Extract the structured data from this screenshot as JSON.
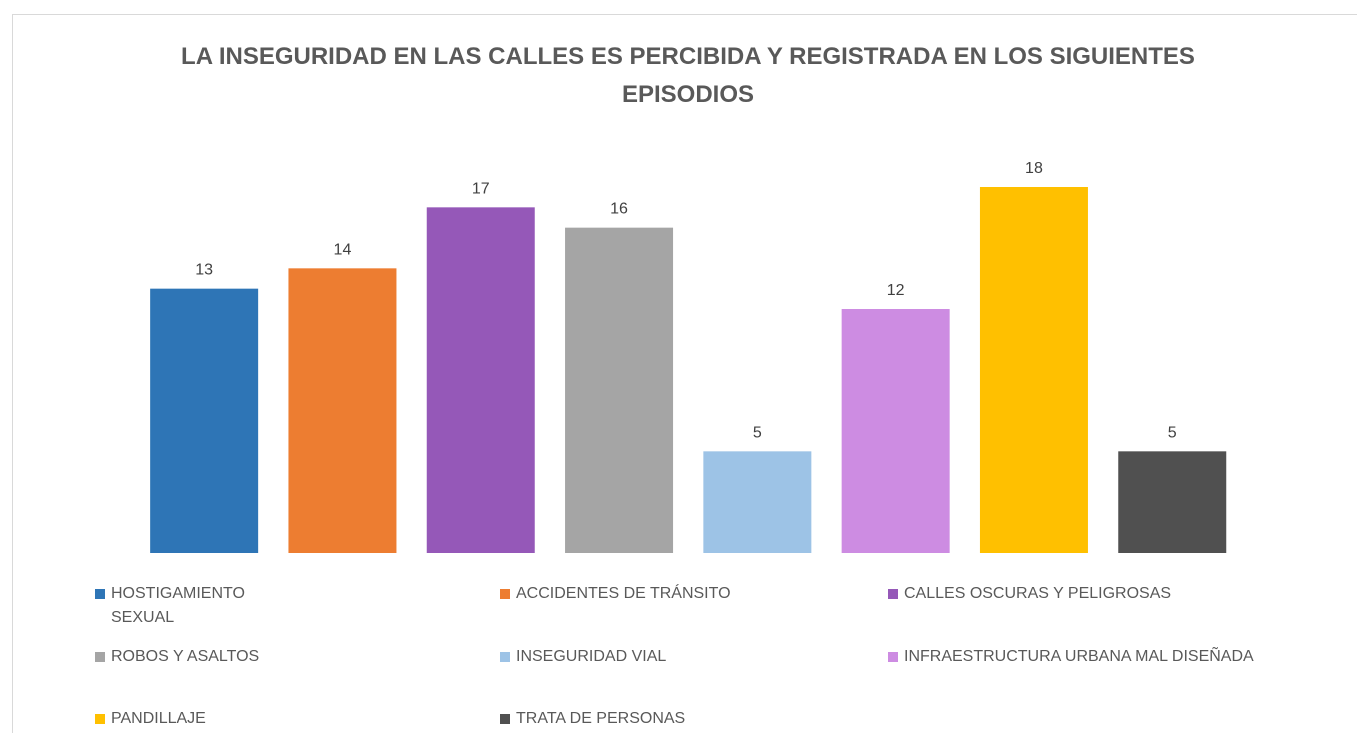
{
  "chart_data": {
    "type": "bar",
    "title": "LA INSEGURIDAD EN LAS CALLES ES PERCIBIDA Y REGISTRADA EN LOS SIGUIENTES EPISODIOS",
    "categories": [
      "HOSTIGAMIENTO SEXUAL",
      "ACCIDENTES DE TRÁNSITO",
      "CALLES OSCURAS Y PELIGROSAS",
      "ROBOS Y ASALTOS",
      "INSEGURIDAD VIAL",
      "INFRAESTRUCTURA URBANA MAL DISEÑADA",
      "PANDILLAJE",
      "TRATA DE PERSONAS"
    ],
    "values": [
      13,
      14,
      17,
      16,
      5,
      12,
      18,
      5
    ],
    "colors": [
      "#2e75b6",
      "#ed7d31",
      "#9558b8",
      "#a5a5a5",
      "#9dc3e6",
      "#cd8ce2",
      "#ffc000",
      "#505050"
    ]
  }
}
